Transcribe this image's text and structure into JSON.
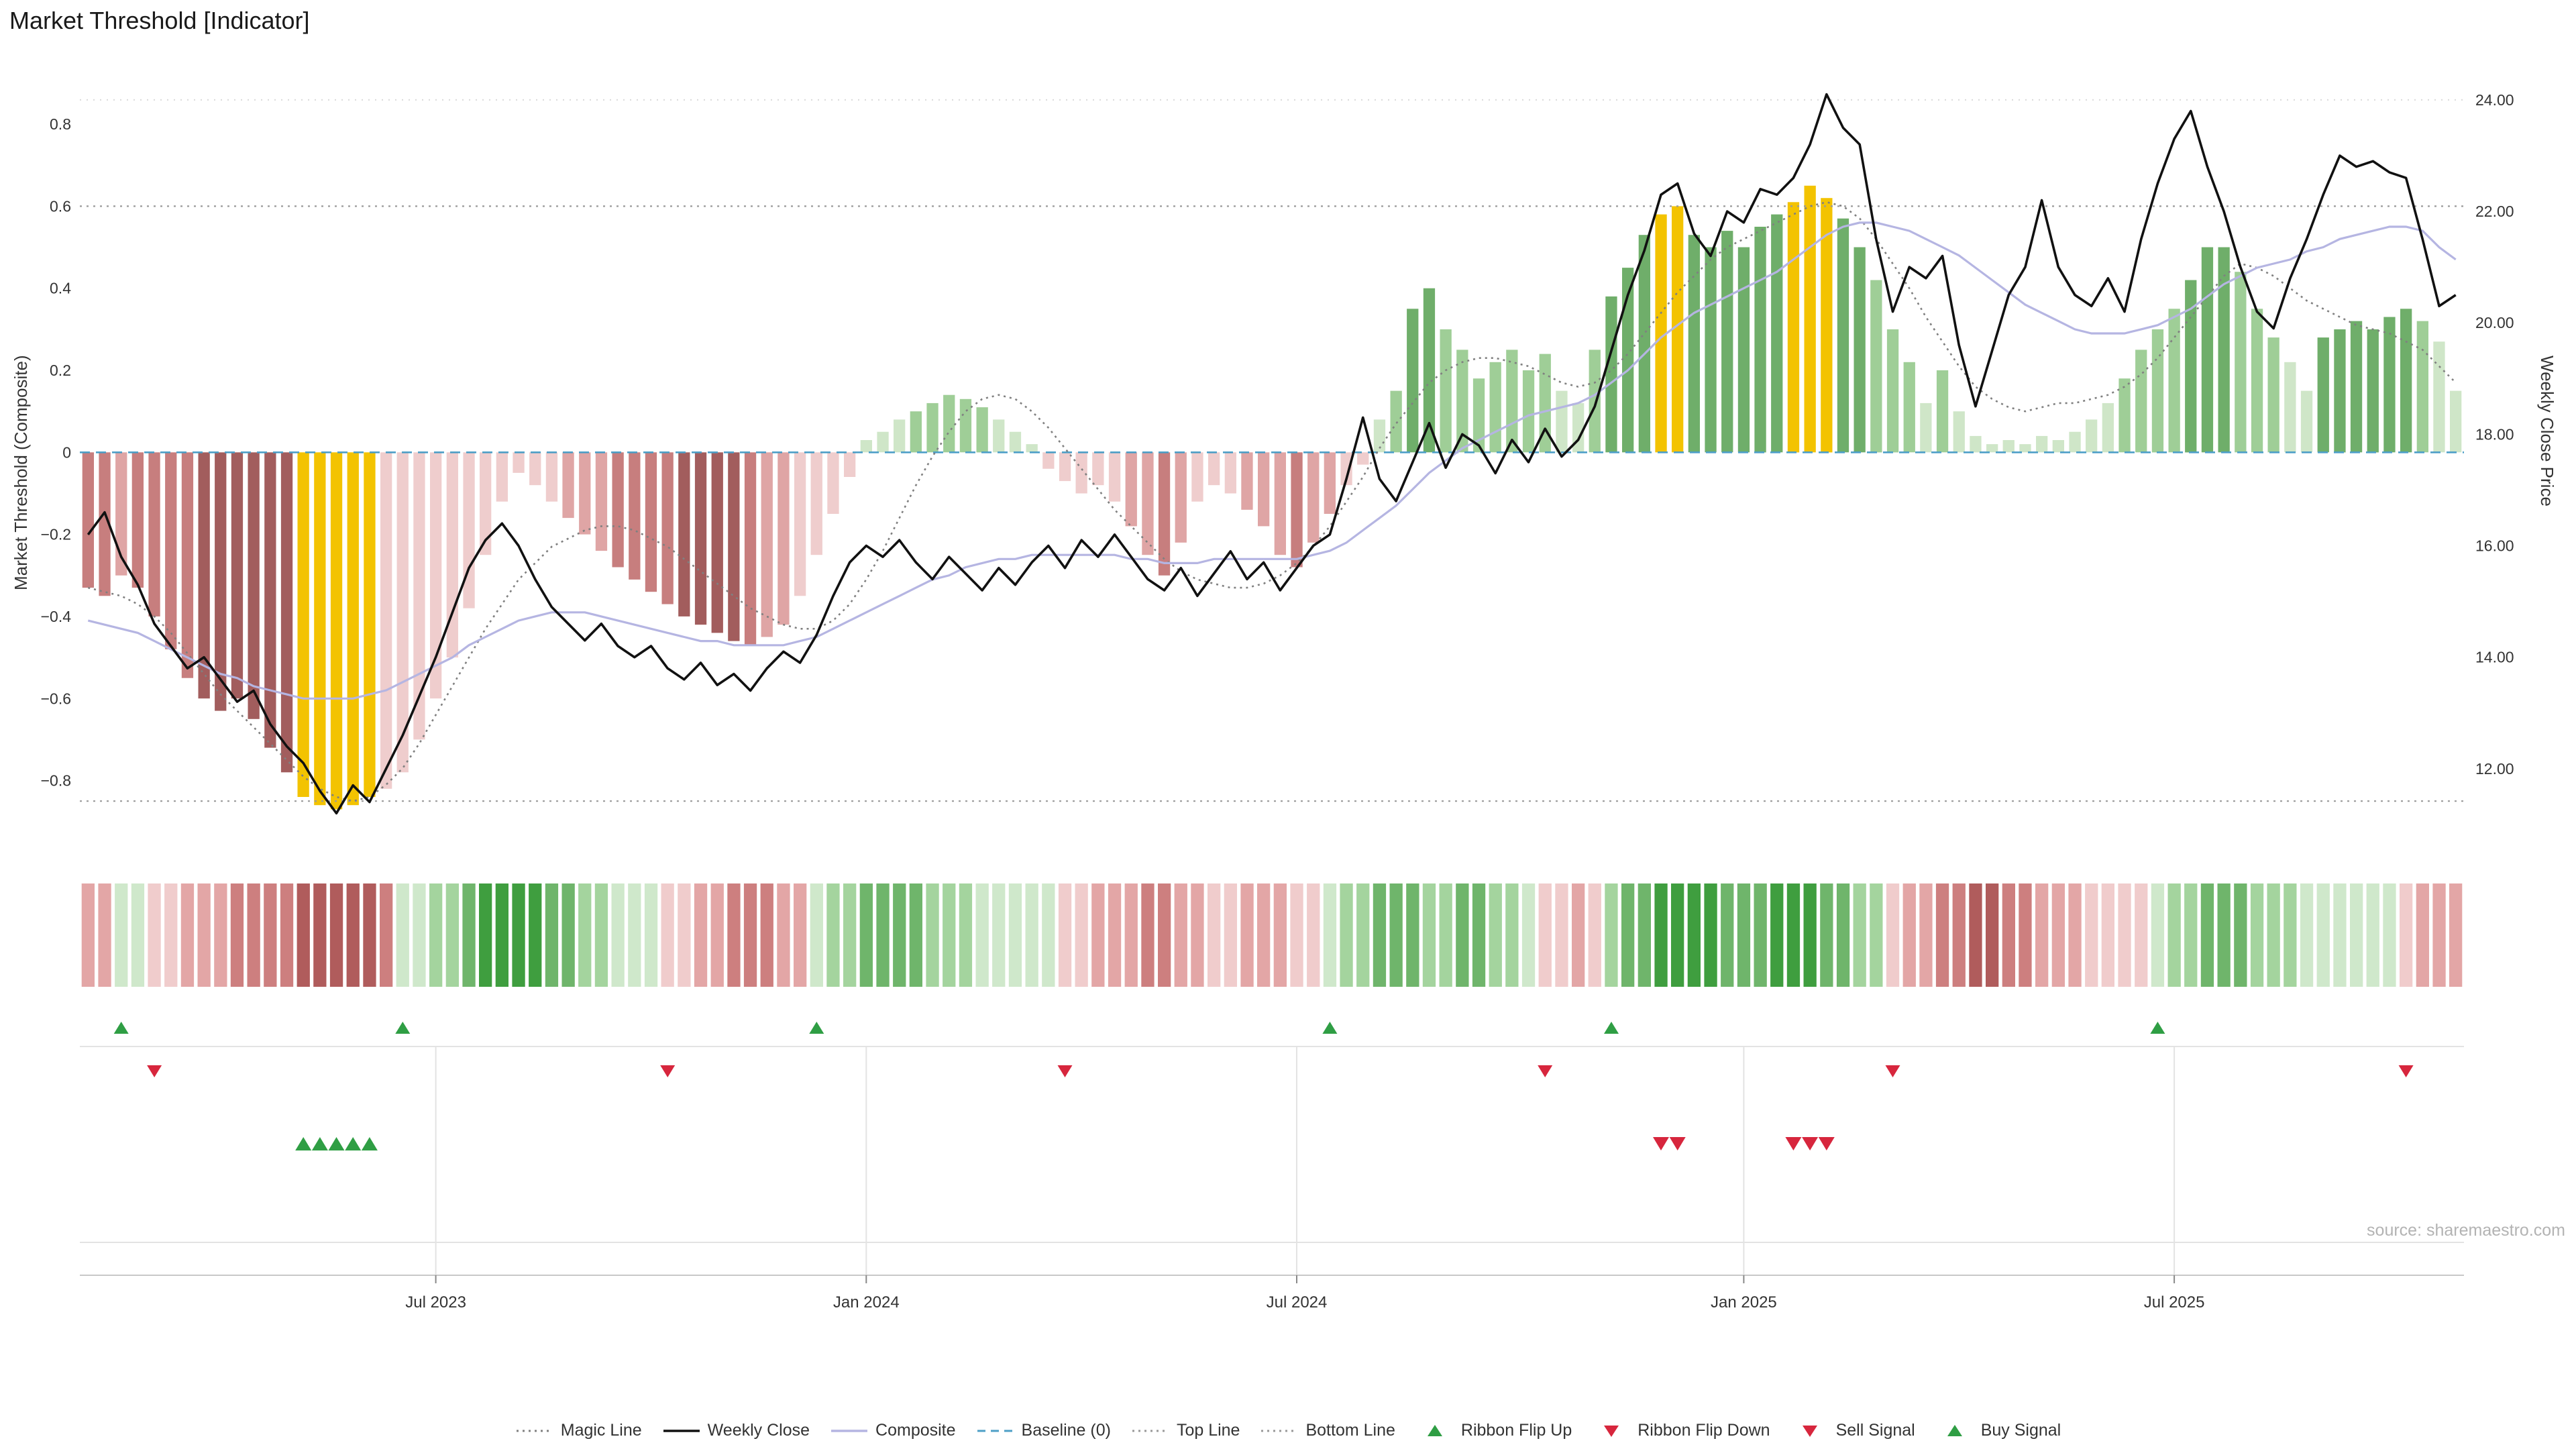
{
  "title": "Market Threshold [Indicator]",
  "source": "source: sharemaestro.com",
  "axes": {
    "left_title": "Market Threshold (Composite)",
    "right_title": "Weekly Close Price"
  },
  "legend": [
    {
      "label": "Magic Line",
      "swatch": "dotted",
      "color": "#808080"
    },
    {
      "label": "Weekly Close",
      "swatch": "solid",
      "color": "#111111"
    },
    {
      "label": "Composite",
      "swatch": "solid",
      "color": "#b5b5e2"
    },
    {
      "label": "Baseline (0)",
      "swatch": "dashed",
      "color": "#4d9fc7"
    },
    {
      "label": "Top Line",
      "swatch": "dotted",
      "color": "#999999"
    },
    {
      "label": "Bottom Line",
      "swatch": "dotted",
      "color": "#999999"
    },
    {
      "label": "Ribbon Flip Up",
      "swatch": "tri-up",
      "color": "#2f9e44"
    },
    {
      "label": "Ribbon Flip Down",
      "swatch": "tri-down",
      "color": "#d7263d"
    },
    {
      "label": "Sell Signal",
      "swatch": "tri-down",
      "color": "#d7263d"
    },
    {
      "label": "Buy Signal",
      "swatch": "tri-up",
      "color": "#2f9e44"
    }
  ],
  "colors": {
    "bar_reds": [
      "#efcdcd",
      "#dfa5a5",
      "#c77e7e",
      "#a25d5d"
    ],
    "bar_greens": [
      "#cfe6c8",
      "#9fce97",
      "#6fae6a",
      "#4c8f4c"
    ],
    "gold": "#f3c301",
    "ribbon_reds": [
      "#f0cccc",
      "#e3a6a6",
      "#cd7f7f",
      "#b05c5c"
    ],
    "ribbon_greens": [
      "#cfe8cb",
      "#a4d49e",
      "#6fb56b",
      "#3f9e3f"
    ],
    "weekly_close": "#111111",
    "composite": "#b5b5e2",
    "magic": "#808080",
    "baseline": "#4d9fc7",
    "guide": "#9a9a9a",
    "signal_up": "#2f9e44",
    "signal_down": "#d7263d",
    "grid": "#e3e3e3",
    "axis_text": "#333333"
  },
  "chart_data": {
    "type": "combo: weekly bar histogram (threshold, left axis) + lines (weekly close price right axis, composite, magic line) + trend ribbon + signal markers",
    "weeks": 144,
    "left_axis": {
      "domain": [
        -1.01,
        0.98
      ],
      "ticks": [
        {
          "v": 0.8,
          "label": "0.8"
        },
        {
          "v": 0.6,
          "label": "0.6"
        },
        {
          "v": 0.4,
          "label": "0.4"
        },
        {
          "v": 0.2,
          "label": "0.2"
        },
        {
          "v": 0.0,
          "label": "0"
        },
        {
          "v": -0.2,
          "label": "−0.2"
        },
        {
          "v": -0.4,
          "label": "−0.4"
        },
        {
          "v": -0.6,
          "label": "−0.6"
        },
        {
          "v": -0.8,
          "label": "−0.8"
        }
      ]
    },
    "right_axis": {
      "domain": [
        10.24,
        24.89
      ],
      "ticks": [
        {
          "v": 24,
          "label": "24.00"
        },
        {
          "v": 22,
          "label": "22.00"
        },
        {
          "v": 20,
          "label": "20.00"
        },
        {
          "v": 18,
          "label": "18.00"
        },
        {
          "v": 16,
          "label": "16.00"
        },
        {
          "v": 14,
          "label": "14.00"
        },
        {
          "v": 12,
          "label": "12.00"
        }
      ]
    },
    "x_ticks": [
      {
        "week": 21,
        "label": "Jul 2023"
      },
      {
        "week": 47,
        "label": "Jan 2024"
      },
      {
        "week": 73,
        "label": "Jul 2024"
      },
      {
        "week": 100,
        "label": "Jan 2025"
      },
      {
        "week": 126,
        "label": "Jul 2025"
      }
    ],
    "guides": {
      "top_line": 0.6,
      "bottom_line": -0.85,
      "baseline": 0,
      "faint_top_grid": 24.0
    },
    "series": {
      "threshold": [
        -0.33,
        -0.35,
        -0.3,
        -0.33,
        -0.4,
        -0.48,
        -0.55,
        -0.6,
        -0.63,
        -0.6,
        -0.65,
        -0.72,
        -0.78,
        -0.84,
        -0.86,
        -0.87,
        -0.86,
        -0.84,
        -0.82,
        -0.78,
        -0.7,
        -0.6,
        -0.5,
        -0.38,
        -0.25,
        -0.12,
        -0.05,
        -0.08,
        -0.12,
        -0.16,
        -0.2,
        -0.24,
        -0.28,
        -0.31,
        -0.34,
        -0.37,
        -0.4,
        -0.42,
        -0.44,
        -0.46,
        -0.47,
        -0.45,
        -0.42,
        -0.35,
        -0.25,
        -0.15,
        -0.06,
        0.03,
        0.05,
        0.08,
        0.1,
        0.12,
        0.14,
        0.13,
        0.11,
        0.08,
        0.05,
        0.02,
        -0.04,
        -0.07,
        -0.1,
        -0.08,
        -0.12,
        -0.18,
        -0.25,
        -0.3,
        -0.22,
        -0.12,
        -0.08,
        -0.1,
        -0.14,
        -0.18,
        -0.25,
        -0.28,
        -0.22,
        -0.15,
        -0.08,
        -0.03,
        0.08,
        0.15,
        0.35,
        0.4,
        0.3,
        0.25,
        0.18,
        0.22,
        0.25,
        0.2,
        0.24,
        0.15,
        0.12,
        0.25,
        0.38,
        0.45,
        0.53,
        0.58,
        0.6,
        0.53,
        0.5,
        0.54,
        0.5,
        0.55,
        0.58,
        0.61,
        0.65,
        0.62,
        0.57,
        0.5,
        0.42,
        0.3,
        0.22,
        0.12,
        0.2,
        0.1,
        0.04,
        0.02,
        0.03,
        0.02,
        0.04,
        0.03,
        0.05,
        0.08,
        0.12,
        0.18,
        0.25,
        0.3,
        0.35,
        0.42,
        0.5,
        0.5,
        0.44,
        0.35,
        0.28,
        0.22,
        0.15,
        0.28,
        0.3,
        0.32,
        0.3,
        0.33,
        0.35,
        0.32,
        0.27,
        0.15
      ],
      "bar_shades": [
        -3,
        -3,
        -2,
        -3,
        -3,
        -3,
        -3,
        -4,
        -4,
        -4,
        -4,
        -4,
        -4,
        "G",
        "G",
        "G",
        "G",
        "G",
        -1,
        -1,
        -1,
        -1,
        -1,
        -1,
        -1,
        -1,
        -1,
        -1,
        -1,
        -2,
        -2,
        -2,
        -3,
        -3,
        -3,
        -3,
        -4,
        -4,
        -4,
        -4,
        -3,
        -2,
        -2,
        -1,
        -1,
        -1,
        -1,
        1,
        1,
        1,
        2,
        2,
        2,
        2,
        2,
        1,
        1,
        1,
        -1,
        -1,
        -1,
        -1,
        -1,
        -2,
        -2,
        -3,
        -2,
        -1,
        -1,
        -1,
        -2,
        -2,
        -2,
        -3,
        -2,
        -2,
        -1,
        -1,
        1,
        2,
        3,
        3,
        2,
        2,
        2,
        2,
        2,
        2,
        2,
        1,
        1,
        2,
        3,
        3,
        3,
        "G",
        "G",
        3,
        3,
        3,
        3,
        3,
        3,
        "G",
        "G",
        "G",
        3,
        3,
        2,
        2,
        2,
        1,
        2,
        1,
        1,
        1,
        1,
        1,
        1,
        1,
        1,
        1,
        1,
        2,
        2,
        2,
        2,
        3,
        3,
        3,
        2,
        2,
        2,
        1,
        1,
        3,
        3,
        3,
        3,
        3,
        3,
        2,
        1,
        1
      ],
      "weekly_close": [
        16.2,
        16.6,
        15.8,
        15.3,
        14.6,
        14.2,
        13.8,
        14.0,
        13.6,
        13.2,
        13.4,
        12.8,
        12.4,
        12.1,
        11.6,
        11.2,
        11.7,
        11.4,
        12.0,
        12.6,
        13.3,
        14.0,
        14.8,
        15.6,
        16.1,
        16.4,
        16.0,
        15.4,
        14.9,
        14.6,
        14.3,
        14.6,
        14.2,
        14.0,
        14.2,
        13.8,
        13.6,
        13.9,
        13.5,
        13.7,
        13.4,
        13.8,
        14.1,
        13.9,
        14.4,
        15.1,
        15.7,
        16.0,
        15.8,
        16.1,
        15.7,
        15.4,
        15.8,
        15.5,
        15.2,
        15.6,
        15.3,
        15.7,
        16.0,
        15.6,
        16.1,
        15.8,
        16.2,
        15.8,
        15.4,
        15.2,
        15.6,
        15.1,
        15.5,
        15.9,
        15.4,
        15.7,
        15.2,
        15.6,
        16.0,
        16.2,
        17.2,
        18.3,
        17.2,
        16.8,
        17.5,
        18.2,
        17.4,
        18.0,
        17.8,
        17.3,
        17.9,
        17.5,
        18.1,
        17.6,
        17.9,
        18.5,
        19.5,
        20.5,
        21.3,
        22.3,
        22.5,
        21.6,
        21.2,
        22.0,
        21.8,
        22.4,
        22.3,
        22.6,
        23.2,
        24.1,
        23.5,
        23.2,
        21.5,
        20.2,
        21.0,
        20.8,
        21.2,
        19.6,
        18.5,
        19.5,
        20.5,
        21.0,
        22.2,
        21.0,
        20.5,
        20.3,
        20.8,
        20.2,
        21.5,
        22.5,
        23.3,
        23.8,
        22.8,
        22.0,
        21.0,
        20.2,
        19.9,
        20.8,
        21.5,
        22.3,
        23.0,
        22.8,
        22.9,
        22.7,
        22.6,
        21.5,
        20.3,
        20.5
      ],
      "composite": [
        -0.41,
        -0.42,
        -0.43,
        -0.44,
        -0.46,
        -0.48,
        -0.5,
        -0.52,
        -0.54,
        -0.55,
        -0.57,
        -0.58,
        -0.59,
        -0.6,
        -0.6,
        -0.6,
        -0.6,
        -0.59,
        -0.58,
        -0.56,
        -0.54,
        -0.52,
        -0.5,
        -0.47,
        -0.45,
        -0.43,
        -0.41,
        -0.4,
        -0.39,
        -0.39,
        -0.39,
        -0.4,
        -0.41,
        -0.42,
        -0.43,
        -0.44,
        -0.45,
        -0.46,
        -0.46,
        -0.47,
        -0.47,
        -0.47,
        -0.47,
        -0.46,
        -0.45,
        -0.43,
        -0.41,
        -0.39,
        -0.37,
        -0.35,
        -0.33,
        -0.31,
        -0.3,
        -0.28,
        -0.27,
        -0.26,
        -0.26,
        -0.25,
        -0.25,
        -0.25,
        -0.25,
        -0.25,
        -0.25,
        -0.26,
        -0.26,
        -0.27,
        -0.27,
        -0.27,
        -0.26,
        -0.26,
        -0.26,
        -0.26,
        -0.26,
        -0.26,
        -0.25,
        -0.24,
        -0.22,
        -0.19,
        -0.16,
        -0.13,
        -0.09,
        -0.05,
        -0.02,
        0.01,
        0.03,
        0.05,
        0.07,
        0.09,
        0.1,
        0.11,
        0.12,
        0.14,
        0.17,
        0.2,
        0.24,
        0.28,
        0.31,
        0.34,
        0.36,
        0.38,
        0.4,
        0.42,
        0.44,
        0.47,
        0.5,
        0.53,
        0.55,
        0.56,
        0.56,
        0.55,
        0.54,
        0.52,
        0.5,
        0.48,
        0.45,
        0.42,
        0.39,
        0.36,
        0.34,
        0.32,
        0.3,
        0.29,
        0.29,
        0.29,
        0.3,
        0.31,
        0.33,
        0.35,
        0.38,
        0.41,
        0.43,
        0.45,
        0.46,
        0.47,
        0.49,
        0.5,
        0.52,
        0.53,
        0.54,
        0.55,
        0.55,
        0.54,
        0.5,
        0.47
      ],
      "magic_line": [
        -0.33,
        -0.34,
        -0.35,
        -0.37,
        -0.4,
        -0.44,
        -0.49,
        -0.54,
        -0.59,
        -0.63,
        -0.67,
        -0.71,
        -0.75,
        -0.79,
        -0.82,
        -0.84,
        -0.85,
        -0.84,
        -0.81,
        -0.77,
        -0.71,
        -0.64,
        -0.57,
        -0.5,
        -0.43,
        -0.37,
        -0.31,
        -0.27,
        -0.23,
        -0.21,
        -0.19,
        -0.18,
        -0.18,
        -0.19,
        -0.21,
        -0.23,
        -0.26,
        -0.29,
        -0.32,
        -0.35,
        -0.38,
        -0.4,
        -0.42,
        -0.43,
        -0.43,
        -0.41,
        -0.37,
        -0.31,
        -0.24,
        -0.16,
        -0.08,
        -0.01,
        0.05,
        0.1,
        0.13,
        0.14,
        0.13,
        0.1,
        0.06,
        0.01,
        -0.04,
        -0.09,
        -0.14,
        -0.18,
        -0.22,
        -0.26,
        -0.29,
        -0.31,
        -0.32,
        -0.33,
        -0.33,
        -0.32,
        -0.3,
        -0.27,
        -0.23,
        -0.18,
        -0.12,
        -0.06,
        0.01,
        0.07,
        0.12,
        0.17,
        0.2,
        0.22,
        0.23,
        0.23,
        0.22,
        0.21,
        0.19,
        0.17,
        0.16,
        0.17,
        0.2,
        0.24,
        0.29,
        0.34,
        0.39,
        0.43,
        0.47,
        0.5,
        0.52,
        0.54,
        0.56,
        0.58,
        0.6,
        0.61,
        0.6,
        0.57,
        0.52,
        0.46,
        0.4,
        0.33,
        0.27,
        0.21,
        0.16,
        0.13,
        0.11,
        0.1,
        0.11,
        0.12,
        0.12,
        0.13,
        0.14,
        0.16,
        0.19,
        0.23,
        0.28,
        0.33,
        0.38,
        0.43,
        0.46,
        0.45,
        0.43,
        0.4,
        0.37,
        0.35,
        0.33,
        0.31,
        0.3,
        0.29,
        0.27,
        0.25,
        0.21,
        0.17
      ]
    },
    "ribbon": [
      -2,
      -2,
      1,
      1,
      -1,
      -1,
      -2,
      -2,
      -2,
      -3,
      -3,
      -3,
      -3,
      -4,
      -4,
      -4,
      -4,
      -4,
      -3,
      1,
      1,
      2,
      2,
      3,
      4,
      4,
      4,
      4,
      3,
      3,
      2,
      2,
      1,
      1,
      1,
      -1,
      -1,
      -2,
      -2,
      -3,
      -3,
      -3,
      -2,
      -2,
      1,
      2,
      2,
      3,
      3,
      3,
      3,
      2,
      2,
      2,
      1,
      1,
      1,
      1,
      1,
      -1,
      -1,
      -2,
      -2,
      -2,
      -3,
      -3,
      -2,
      -2,
      -1,
      -1,
      -2,
      -2,
      -2,
      -1,
      -1,
      1,
      2,
      2,
      3,
      3,
      3,
      2,
      2,
      3,
      3,
      2,
      2,
      1,
      -1,
      -1,
      -2,
      -1,
      2,
      3,
      3,
      4,
      4,
      4,
      4,
      3,
      3,
      3,
      4,
      4,
      4,
      3,
      3,
      2,
      2,
      -1,
      -2,
      -2,
      -3,
      -3,
      -4,
      -4,
      -3,
      -3,
      -2,
      -2,
      -2,
      -1,
      -1,
      -1,
      -1,
      1,
      2,
      2,
      3,
      3,
      3,
      2,
      2,
      2,
      1,
      1,
      1,
      1,
      1,
      1,
      -1,
      -2,
      -2,
      -2
    ],
    "signals": {
      "ribbon_flip_up_weeks": [
        2,
        19,
        44,
        75,
        92,
        125
      ],
      "ribbon_flip_down_weeks": [
        4,
        35,
        59,
        88,
        109,
        140
      ],
      "buy_signal_weeks": [
        13,
        14,
        15,
        16,
        17
      ],
      "sell_signal_weeks": [
        95,
        96,
        103,
        104,
        105
      ]
    }
  }
}
